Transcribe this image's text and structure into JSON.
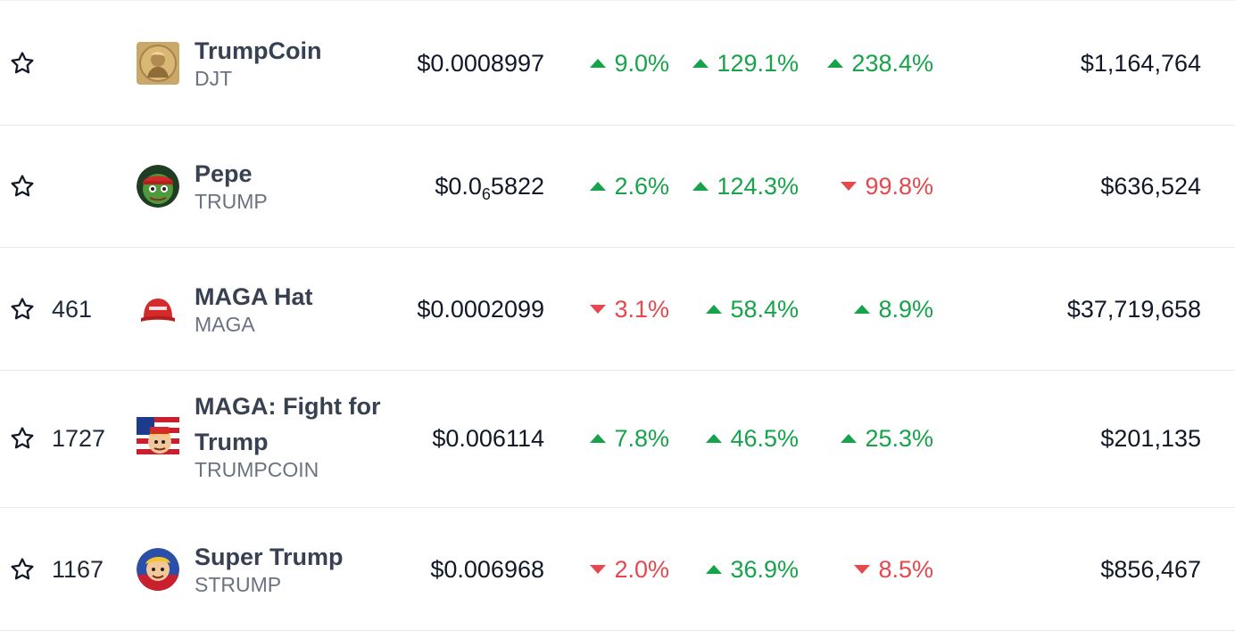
{
  "colors": {
    "up": "#16a34a",
    "down": "#e5484d"
  },
  "rows": [
    {
      "rank": "",
      "name": "TrumpCoin",
      "symbol": "DJT",
      "price_prefix": "$0.0008997",
      "price_sub": "",
      "price_suffix": "",
      "change_1h": {
        "text": "9.0%",
        "dir": "up"
      },
      "change_24h": {
        "text": "129.1%",
        "dir": "up"
      },
      "change_7d": {
        "text": "238.4%",
        "dir": "up"
      },
      "volume": "$1,164,764",
      "logo_icon": "gold-coin-portrait-icon"
    },
    {
      "rank": "",
      "name": "Pepe",
      "symbol": "TRUMP",
      "price_prefix": "$0.0",
      "price_sub": "6",
      "price_suffix": "5822",
      "change_1h": {
        "text": "2.6%",
        "dir": "up"
      },
      "change_24h": {
        "text": "124.3%",
        "dir": "up"
      },
      "change_7d": {
        "text": "99.8%",
        "dir": "down"
      },
      "volume": "$636,524",
      "logo_icon": "pepe-frog-red-cap-icon"
    },
    {
      "rank": "461",
      "name": "MAGA Hat",
      "symbol": "MAGA",
      "price_prefix": "$0.0002099",
      "price_sub": "",
      "price_suffix": "",
      "change_1h": {
        "text": "3.1%",
        "dir": "down"
      },
      "change_24h": {
        "text": "58.4%",
        "dir": "up"
      },
      "change_7d": {
        "text": "8.9%",
        "dir": "up"
      },
      "volume": "$37,719,658",
      "logo_icon": "red-hat-icon"
    },
    {
      "rank": "1727",
      "name": "MAGA: Fight for Trump",
      "symbol": "TRUMPCOIN",
      "price_prefix": "$0.006114",
      "price_sub": "",
      "price_suffix": "",
      "change_1h": {
        "text": "7.8%",
        "dir": "up"
      },
      "change_24h": {
        "text": "46.5%",
        "dir": "up"
      },
      "change_7d": {
        "text": "25.3%",
        "dir": "up"
      },
      "volume": "$201,135",
      "logo_icon": "flag-cartoon-icon"
    },
    {
      "rank": "1167",
      "name": "Super Trump",
      "symbol": "STRUMP",
      "price_prefix": "$0.006968",
      "price_sub": "",
      "price_suffix": "",
      "change_1h": {
        "text": "2.0%",
        "dir": "down"
      },
      "change_24h": {
        "text": "36.9%",
        "dir": "up"
      },
      "change_7d": {
        "text": "8.5%",
        "dir": "down"
      },
      "volume": "$856,467",
      "logo_icon": "superhero-cartoon-icon"
    }
  ]
}
